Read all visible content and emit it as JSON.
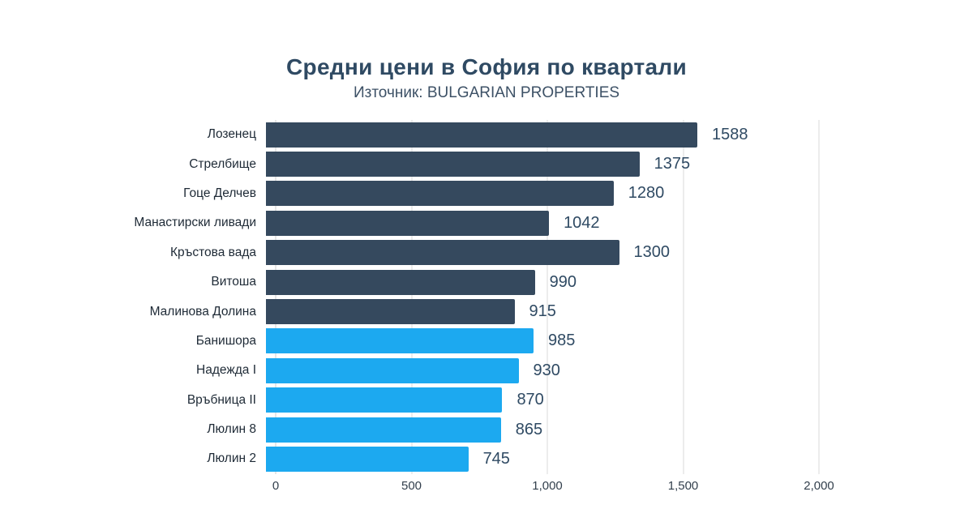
{
  "chart_data": {
    "type": "bar",
    "orientation": "horizontal",
    "title": "Средни цени в София по квартали",
    "subtitle": "Източник: BULGARIAN PROPERTIES",
    "categories": [
      "Лозенец",
      "Стрелбище",
      "Гоце Делчев",
      "Манастирски ливади",
      "Кръстова вада",
      "Витоша",
      "Малинова Долина",
      "Банишора",
      "Надежда I",
      "Връбница II",
      "Люлин 8",
      "Люлин 2"
    ],
    "values": [
      1588,
      1375,
      1280,
      1042,
      1300,
      990,
      915,
      985,
      930,
      870,
      865,
      745
    ],
    "bar_colors": [
      "#35495E",
      "#35495E",
      "#35495E",
      "#35495E",
      "#35495E",
      "#35495E",
      "#35495E",
      "#1CA9F0",
      "#1CA9F0",
      "#1CA9F0",
      "#1CA9F0",
      "#1CA9F0"
    ],
    "xlim": [
      0,
      2000
    ],
    "x_ticks": [
      {
        "value": 0,
        "label": "0"
      },
      {
        "value": 500,
        "label": "500"
      },
      {
        "value": 1000,
        "label": "1,000"
      },
      {
        "value": 1500,
        "label": "1,500"
      },
      {
        "value": 2000,
        "label": "2,000"
      }
    ],
    "grid": true,
    "legend_position": "none",
    "colors": {
      "dark_series": "#35495E",
      "blue_series": "#1CA9F0",
      "title_text": "#2F4A63",
      "gridline": "#d9d9d9"
    }
  }
}
